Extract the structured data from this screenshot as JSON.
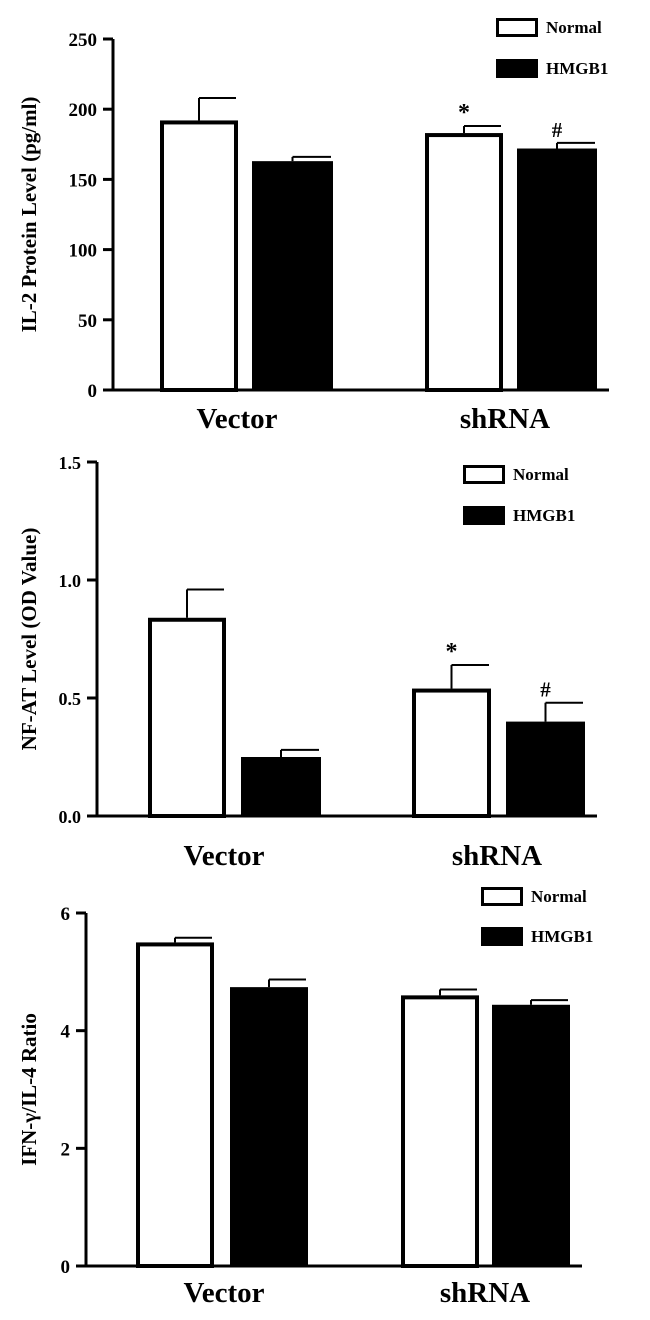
{
  "chart_data": [
    {
      "type": "bar",
      "title": "",
      "xlabel": "",
      "ylabel": "IL-2 Protein Level (pg/ml)",
      "categories": [
        "Vector",
        "shRNA"
      ],
      "ylim": [
        0,
        250
      ],
      "yticks": [
        0,
        50,
        100,
        150,
        200,
        250
      ],
      "ytick_labels": [
        "0",
        "50",
        "100",
        "150",
        "200",
        "250"
      ],
      "legend_position": "top-right",
      "series": [
        {
          "name": "Normal",
          "values": [
            192,
            183
          ],
          "errors": [
            16,
            5
          ],
          "annotations": [
            "",
            "*"
          ]
        },
        {
          "name": "HMGB1",
          "values": [
            163,
            172
          ],
          "errors": [
            3,
            4
          ],
          "annotations": [
            "",
            "#"
          ]
        }
      ]
    },
    {
      "type": "bar",
      "title": "",
      "xlabel": "",
      "ylabel": "NF-AT Level (OD Value)",
      "categories": [
        "Vector",
        "shRNA"
      ],
      "ylim": [
        0,
        1.5
      ],
      "yticks": [
        0,
        0.5,
        1.0,
        1.5
      ],
      "ytick_labels": [
        "0.0",
        "0.5",
        "1.0",
        "1.5"
      ],
      "legend_position": "top-right",
      "series": [
        {
          "name": "Normal",
          "values": [
            0.84,
            0.54
          ],
          "errors": [
            0.12,
            0.1
          ],
          "annotations": [
            "",
            "*"
          ]
        },
        {
          "name": "HMGB1",
          "values": [
            0.25,
            0.4
          ],
          "errors": [
            0.03,
            0.08
          ],
          "annotations": [
            "",
            "#"
          ]
        }
      ]
    },
    {
      "type": "bar",
      "title": "",
      "xlabel": "",
      "ylabel": "IFN-γ/IL-4 Ratio",
      "categories": [
        "Vector",
        "shRNA"
      ],
      "ylim": [
        0,
        6
      ],
      "yticks": [
        0,
        2,
        4,
        6
      ],
      "ytick_labels": [
        "0",
        "2",
        "4",
        "6"
      ],
      "legend_position": "top-right",
      "series": [
        {
          "name": "Normal",
          "values": [
            5.5,
            4.6
          ],
          "errors": [
            0.08,
            0.1
          ],
          "annotations": [
            "",
            ""
          ]
        },
        {
          "name": "HMGB1",
          "values": [
            4.74,
            4.44
          ],
          "errors": [
            0.13,
            0.08
          ],
          "annotations": [
            "",
            ""
          ]
        }
      ]
    }
  ]
}
